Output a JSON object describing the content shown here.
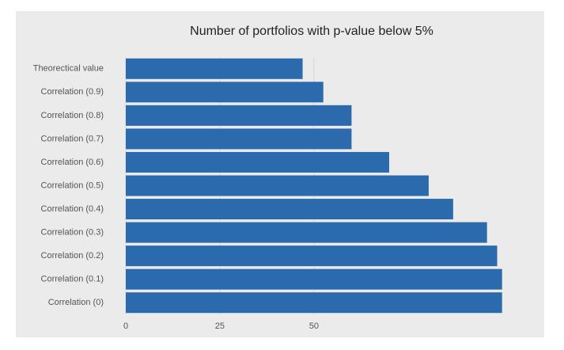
{
  "chart_data": {
    "type": "barh",
    "title": "Number of portfolios with p-value below 5%",
    "categories": [
      "Theorectical value",
      "Correlation (0.9)",
      "Correlation (0.8)",
      "Correlation (0.7)",
      "Correlation (0.6)",
      "Correlation (0.5)",
      "Correlation (0.4)",
      "Correlation (0.3)",
      "Correlation (0.2)",
      "Correlation (0.1)",
      "Correlation (0)"
    ],
    "values": [
      47,
      52.5,
      60,
      60,
      70,
      80.5,
      87,
      96,
      98.7,
      100,
      100
    ],
    "color": "#2b6aac",
    "xlim": [
      0,
      107
    ],
    "xticks": [
      0,
      25,
      50
    ],
    "grid": true
  }
}
